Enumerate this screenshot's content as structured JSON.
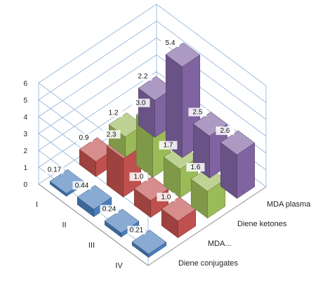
{
  "chart_data": {
    "type": "bar",
    "title": "",
    "xlabel": "",
    "ylabel": "",
    "zlabel": "",
    "ylim": [
      0,
      6
    ],
    "yticks": [
      0,
      1,
      2,
      3,
      4,
      5,
      6
    ],
    "grid": true,
    "legend": "none",
    "categories": [
      "I",
      "II",
      "III",
      "IV"
    ],
    "series": [
      {
        "name": "Diene conjugates",
        "color": "#4a7ebb",
        "values": [
          0.17,
          0.44,
          0.24,
          0.21
        ],
        "labels": [
          "0.17",
          "0.44",
          "0.24",
          "0.21"
        ]
      },
      {
        "name": "MDA...",
        "color": "#c0504d",
        "values": [
          0.9,
          2.3,
          1.0,
          1.0
        ],
        "labels": [
          "0.9",
          "2.3",
          "1.0",
          "1.0"
        ]
      },
      {
        "name": "Diene ketones",
        "color": "#9bbb59",
        "values": [
          1.2,
          3.0,
          1.7,
          1.6
        ],
        "labels": [
          "1.2",
          "3.0",
          "1.7",
          "1.6"
        ]
      },
      {
        "name": "MDA plasma",
        "color": "#8064a2",
        "values": [
          2.2,
          5.4,
          2.5,
          2.6
        ],
        "labels": [
          "2.2",
          "5.4",
          "2.5",
          "2.6"
        ]
      }
    ]
  }
}
